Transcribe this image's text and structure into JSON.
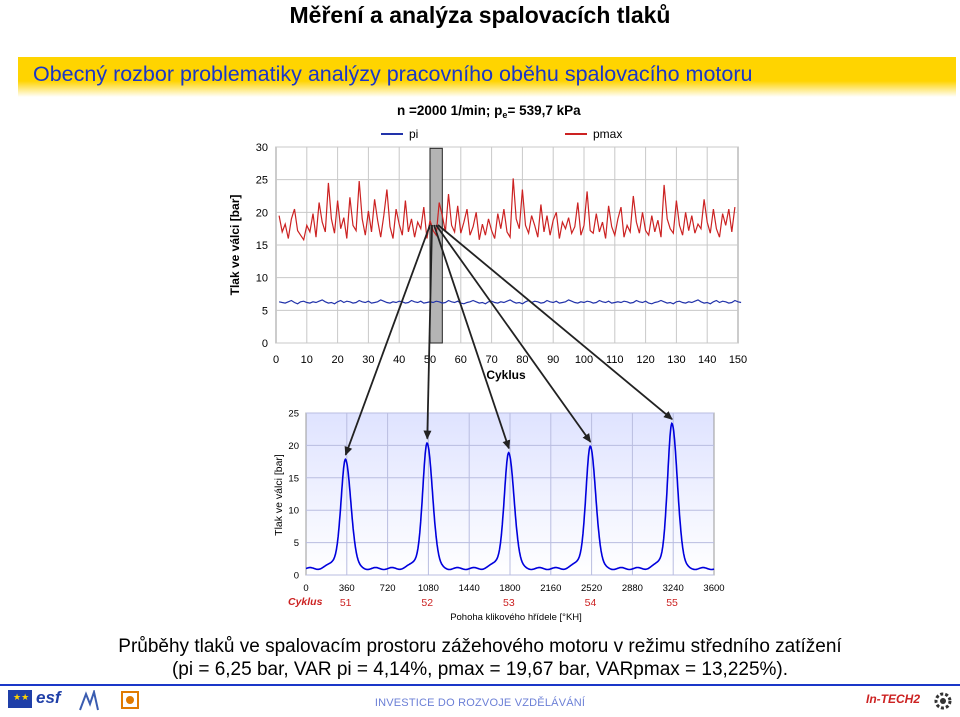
{
  "header": {
    "title": "Měření a analýza spalovacích tlaků",
    "subtitle": "Obecný rozbor problematiky analýzy pracovního oběhu spalovacího motoru"
  },
  "chart_top": {
    "title": "n =2000 1/min; p",
    "title_sub": "e",
    "title_tail": "= 539,7 kPa",
    "legend": [
      "pi",
      "pmax"
    ],
    "xlabel": "Cyklus",
    "ylabel": "Tlak ve válci [bar]",
    "x_ticks": [
      "0",
      "10",
      "20",
      "30",
      "40",
      "50",
      "60",
      "70",
      "80",
      "90",
      "100",
      "110",
      "120",
      "130",
      "140",
      "150"
    ],
    "y_ticks": [
      "0",
      "5",
      "10",
      "15",
      "20",
      "25",
      "30"
    ]
  },
  "chart_bottom": {
    "xlabel": "Pohoha klikového hřídele [°KH]",
    "ylabel": "Tlak ve válci [bar]",
    "cycle_label": "Cyklus",
    "x_ticks": [
      "0",
      "360",
      "720",
      "1080",
      "1440",
      "1800",
      "2160",
      "2520",
      "2880",
      "3240",
      "3600"
    ],
    "y_ticks": [
      "0",
      "5",
      "10",
      "15",
      "20",
      "25"
    ],
    "cycle_numbers": [
      "51",
      "52",
      "53",
      "54",
      "55"
    ]
  },
  "chart_data": [
    {
      "type": "line",
      "title": "n =2000 1/min; pe= 539,7 kPa",
      "xlabel": "Cyklus",
      "ylabel": "Tlak ve válci [bar]",
      "xlim": [
        0,
        150
      ],
      "ylim": [
        0,
        30
      ],
      "grid": true,
      "legend_position": "top",
      "highlighted_cycle": 51,
      "series": [
        {
          "name": "pi",
          "color": "#2233aa",
          "values": [
            6.3,
            6.2,
            6.1,
            6.3,
            6.5,
            6.2,
            6.0,
            6.3,
            6.4,
            6.2,
            6.1,
            6.3,
            6.2,
            6.4,
            6.6,
            6.3,
            6.1,
            6.2,
            6.0,
            6.3,
            6.5,
            6.2,
            6.4,
            6.3,
            6.1,
            6.2,
            6.5,
            6.3,
            6.2,
            6.4,
            6.1,
            6.2,
            6.3,
            6.6,
            6.4,
            6.2,
            6.1,
            6.3,
            6.2,
            6.4,
            6.3,
            6.1,
            6.2,
            6.5,
            6.3,
            6.2,
            6.4,
            6.1,
            6.2,
            6.3,
            6.2,
            6.4,
            6.3,
            6.1,
            6.2,
            6.5,
            6.3,
            6.2,
            6.4,
            6.1,
            6.0,
            6.2,
            6.3,
            6.5,
            6.3,
            6.1,
            6.2,
            6.0,
            6.3,
            6.4,
            6.2,
            6.1,
            6.3,
            6.2,
            6.4,
            6.6,
            6.3,
            6.1,
            6.2,
            6.0,
            6.3,
            6.5,
            6.2,
            6.4,
            6.3,
            6.1,
            6.2,
            6.5,
            6.3,
            6.2,
            6.4,
            6.1,
            6.2,
            6.3,
            6.6,
            6.4,
            6.2,
            6.1,
            6.3,
            6.2,
            6.4,
            6.3,
            6.1,
            6.2,
            6.5,
            6.3,
            6.2,
            6.4,
            6.1,
            6.2,
            6.3,
            6.2,
            6.4,
            6.3,
            6.1,
            6.2,
            6.5,
            6.3,
            6.2,
            6.4,
            6.1,
            6.0,
            6.2,
            6.3,
            6.5,
            6.3,
            6.1,
            6.2,
            6.0,
            6.3,
            6.4,
            6.2,
            6.1,
            6.3,
            6.2,
            6.4,
            6.6,
            6.3,
            6.1,
            6.2,
            6.0,
            6.3,
            6.5,
            6.2,
            6.4,
            6.3,
            6.1,
            6.2,
            6.5,
            6.3,
            6.2
          ]
        },
        {
          "name": "pmax",
          "color": "#cc2222",
          "values": [
            19.5,
            17.0,
            18.2,
            16.0,
            19.0,
            20.5,
            17.2,
            16.5,
            15.8,
            18.0,
            17.0,
            19.8,
            16.2,
            21.5,
            18.5,
            17.0,
            24.5,
            19.0,
            16.8,
            21.8,
            17.5,
            19.2,
            16.0,
            22.3,
            18.0,
            17.2,
            24.8,
            19.0,
            16.5,
            20.2,
            17.0,
            22.0,
            18.8,
            16.2,
            19.5,
            23.5,
            17.8,
            16.0,
            20.5,
            18.2,
            16.5,
            21.8,
            17.0,
            19.0,
            16.2,
            18.5,
            17.5,
            20.8,
            16.0,
            18.8,
            17.2,
            16.5,
            21.5,
            19.5,
            17.0,
            22.8,
            18.0,
            17.0,
            21.0,
            16.8,
            18.5,
            20.5,
            16.5,
            17.8,
            20.0,
            15.8,
            18.2,
            16.5,
            19.0,
            17.2,
            16.0,
            19.8,
            17.5,
            20.5,
            17.0,
            16.2,
            25.2,
            19.0,
            17.5,
            23.5,
            18.0,
            16.8,
            19.5,
            18.0,
            16.2,
            21.2,
            17.0,
            19.5,
            16.5,
            18.8,
            20.0,
            16.0,
            18.5,
            17.5,
            19.2,
            16.8,
            17.8,
            21.5,
            16.5,
            18.0,
            23.2,
            17.2,
            16.8,
            19.8,
            17.0,
            18.5,
            16.0,
            21.0,
            17.8,
            16.5,
            19.0,
            20.8,
            16.2,
            18.0,
            17.0,
            22.5,
            18.5,
            16.8,
            20.0,
            17.2,
            16.5,
            19.5,
            17.0,
            18.8,
            16.2,
            24.2,
            19.0,
            17.5,
            16.8,
            21.8,
            18.0,
            16.5,
            20.0,
            17.2,
            19.5,
            16.8,
            18.2,
            17.5,
            22.0,
            18.5,
            16.8,
            20.5,
            17.5,
            16.2,
            19.8,
            18.0,
            20.5,
            17.0,
            20.8
          ]
        }
      ]
    },
    {
      "type": "line",
      "xlabel": "Pohoha klikového hřídele [°KH]",
      "ylabel": "Tlak ve válci [bar]",
      "xlim": [
        0,
        3600
      ],
      "ylim": [
        0,
        25
      ],
      "grid": true,
      "baseline_pressure_bar": 1.0,
      "cycles": [
        {
          "cycle": 51,
          "peak_deg": 350,
          "pmax": 17.0
        },
        {
          "cycle": 52,
          "peak_deg": 1070,
          "pmax": 19.5
        },
        {
          "cycle": 53,
          "peak_deg": 1790,
          "pmax": 18.0
        },
        {
          "cycle": 54,
          "peak_deg": 2510,
          "pmax": 19.0
        },
        {
          "cycle": 55,
          "peak_deg": 3230,
          "pmax": 22.5
        }
      ]
    }
  ],
  "caption": {
    "line1": "Průběhy tlaků ve spalovacím prostoru zážehového motoru v režimu středního zatížení",
    "line2": "(pi = 6,25 bar, VAR pi = 4,14%, pmax = 19,67 bar, VARpmax = 13,225%)."
  },
  "footer": {
    "text": "INVESTICE DO ROZVOJE VZDĚLÁVÁNÍ",
    "logo_esf": "esf",
    "logo_right": "In-TECH2"
  },
  "colors": {
    "banner": "#ffd400",
    "banner_text": "#1a37c8",
    "pi_line": "#2233aa",
    "pmax_line": "#cc2222",
    "pressure_line": "#0000dd"
  }
}
